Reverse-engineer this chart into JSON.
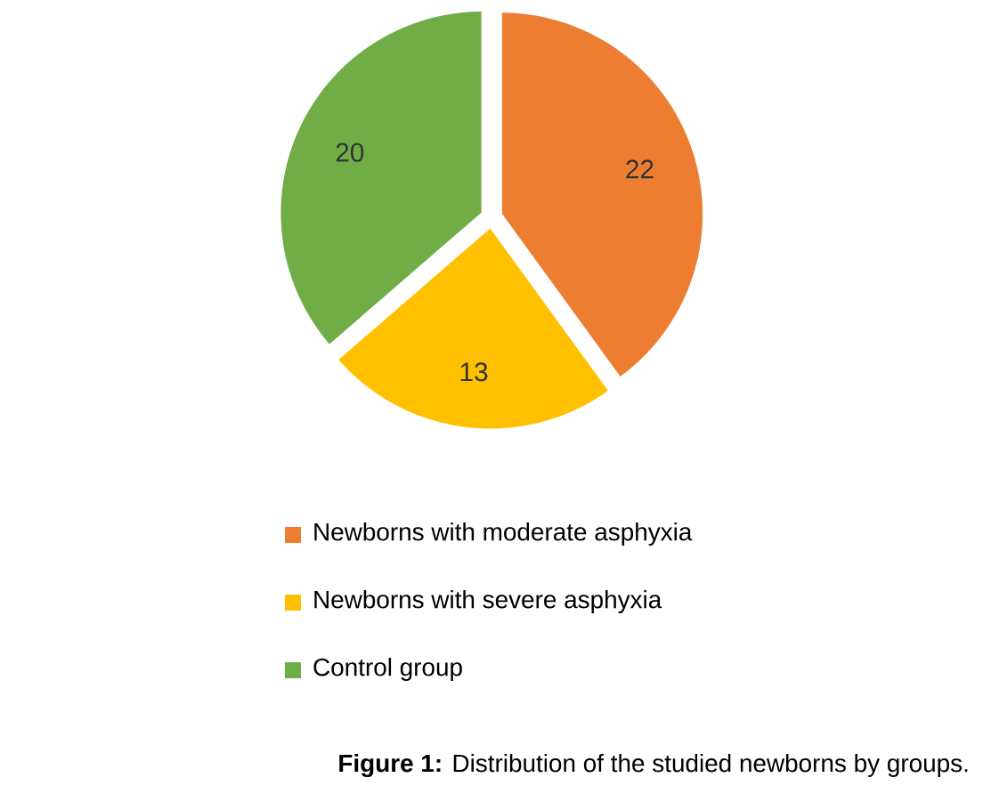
{
  "chart_data": {
    "type": "pie",
    "categories": [
      "Newborns with moderate asphyxia",
      "Newborns with severe asphyxia",
      "Control group"
    ],
    "values": [
      22,
      13,
      20
    ],
    "colors": [
      "#ed7d31",
      "#ffc000",
      "#70ad47"
    ],
    "data_labels": true,
    "legend": "bottom",
    "annotations": [
      "**Figure 1:** Distribution of the studied newborns by groups."
    ]
  }
}
